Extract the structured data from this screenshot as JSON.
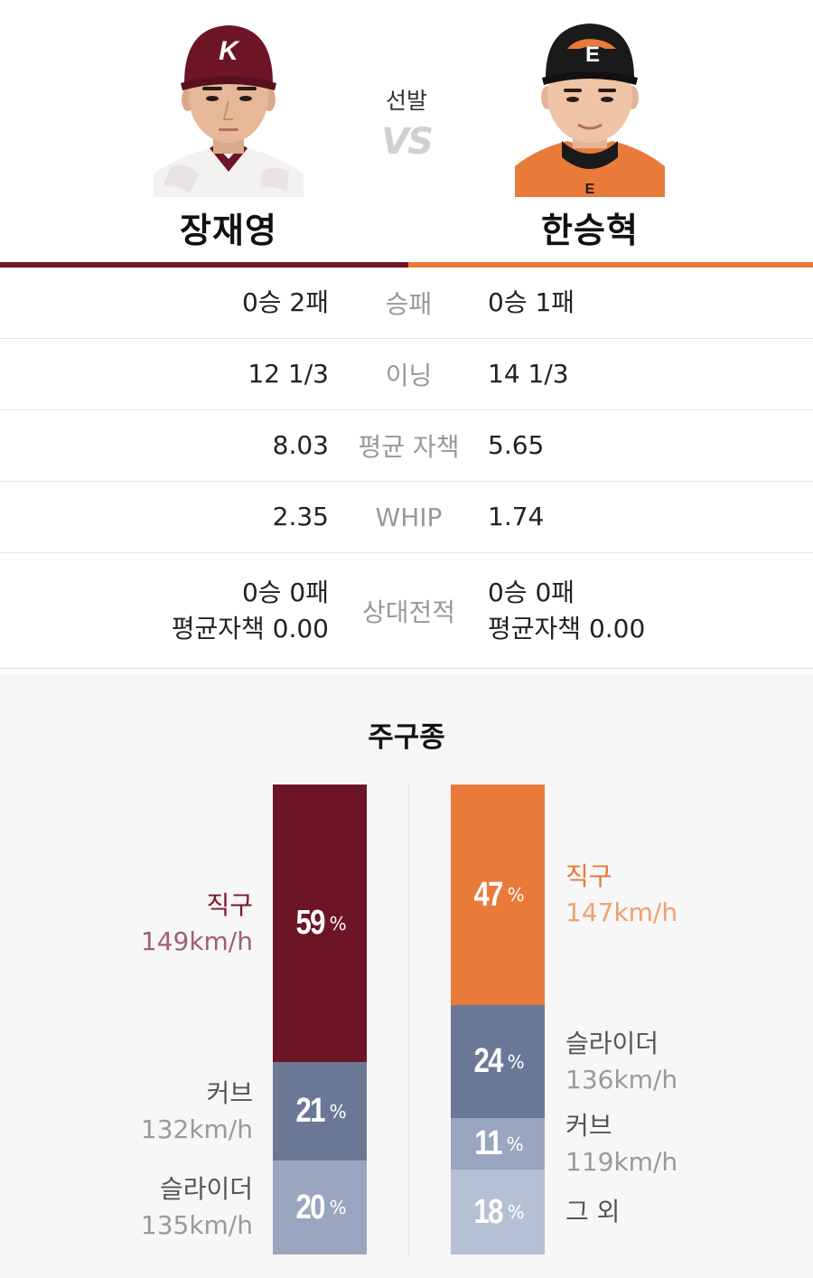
{
  "header": {
    "starter_label": "선발",
    "vs_label": "VS"
  },
  "players": {
    "left": {
      "name": "장재영",
      "cap_letter": "K",
      "team_color": "#6e1427"
    },
    "right": {
      "name": "한승혁",
      "cap_letter": "E",
      "team_color": "#ea7a3a"
    }
  },
  "stats": [
    {
      "label": "승패",
      "left": [
        "0승 2패"
      ],
      "right": [
        "0승 1패"
      ]
    },
    {
      "label": "이닝",
      "left": [
        "12 1/3"
      ],
      "right": [
        "14 1/3"
      ]
    },
    {
      "label": "평균 자책",
      "left": [
        "8.03"
      ],
      "right": [
        "5.65"
      ]
    },
    {
      "label": "WHIP",
      "left": [
        "2.35"
      ],
      "right": [
        "1.74"
      ]
    },
    {
      "label": "상대전적",
      "left": [
        "0승 0패",
        "평균자책 0.00"
      ],
      "right": [
        "0승 0패",
        "평균자책 0.00"
      ]
    }
  ],
  "pitch_section": {
    "title": "주구종",
    "percent_sign": "%",
    "left": [
      {
        "name": "직구",
        "speed": "149km/h",
        "value": 59,
        "color": "#6e1427",
        "label_color": "#7a1a2e",
        "speed_color": "#a06070"
      },
      {
        "name": "커브",
        "speed": "132km/h",
        "value": 21,
        "color": "#6a7896",
        "label_color": "#555555",
        "speed_color": "#9a9a9a"
      },
      {
        "name": "슬라이더",
        "speed": "135km/h",
        "value": 20,
        "color": "#9aa5bf",
        "label_color": "#555555",
        "speed_color": "#9a9a9a"
      }
    ],
    "right": [
      {
        "name": "직구",
        "speed": "147km/h",
        "value": 47,
        "color": "#ea7a3a",
        "label_color": "#e8793a",
        "speed_color": "#f0a070"
      },
      {
        "name": "슬라이더",
        "speed": "136km/h",
        "value": 24,
        "color": "#6a7896",
        "label_color": "#555555",
        "speed_color": "#9a9a9a"
      },
      {
        "name": "커브",
        "speed": "119km/h",
        "value": 11,
        "color": "#9aa5bf",
        "label_color": "#555555",
        "speed_color": "#9a9a9a"
      },
      {
        "name": "그 외",
        "speed": "",
        "value": 18,
        "color": "#b6c0d4",
        "label_color": "#555555",
        "speed_color": "#9a9a9a"
      }
    ]
  }
}
